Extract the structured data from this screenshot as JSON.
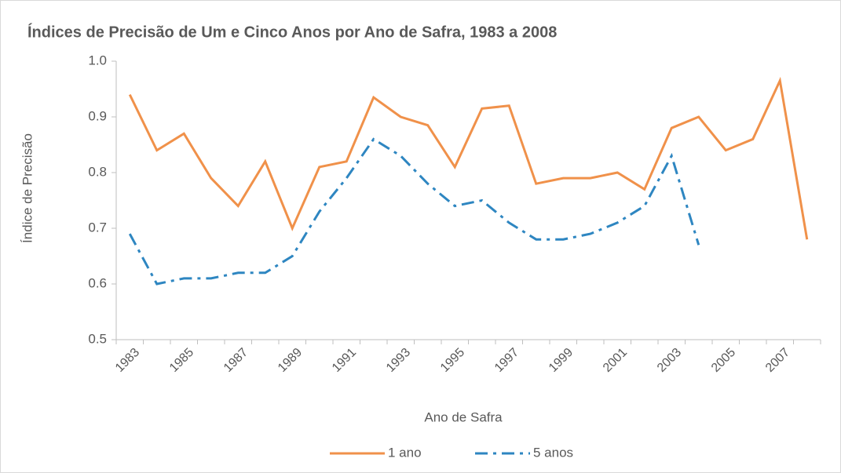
{
  "chart_data": {
    "type": "line",
    "title": "Índices de Precisão de Um e Cinco Anos por Ano de Safra, 1983 a 2008",
    "x_label": "Ano de Safra",
    "y_label": "Índice de Precisão",
    "categories": [
      "1983",
      null,
      "1985",
      null,
      "1987",
      null,
      "1989",
      null,
      "1991",
      null,
      "1993",
      null,
      "1995",
      null,
      "1997",
      null,
      "1999",
      null,
      "2001",
      null,
      "2003",
      null,
      "2005",
      null,
      "2007",
      null
    ],
    "series": [
      {
        "name": "1 ano",
        "color": "#f0914a",
        "dash": "solid",
        "values": [
          0.94,
          0.84,
          0.87,
          0.79,
          0.74,
          0.82,
          0.7,
          0.81,
          0.82,
          0.935,
          0.9,
          0.885,
          0.81,
          0.915,
          0.92,
          0.78,
          0.79,
          0.79,
          0.8,
          0.77,
          0.88,
          0.9,
          0.84,
          0.86,
          0.965,
          0.68
        ]
      },
      {
        "name": "5 anos",
        "color": "#2e86c1",
        "dash": "dash-dot",
        "values": [
          0.69,
          0.6,
          0.61,
          0.61,
          0.62,
          0.62,
          0.65,
          0.73,
          0.79,
          0.86,
          0.83,
          0.78,
          0.74,
          0.75,
          0.71,
          0.68,
          0.68,
          0.69,
          0.71,
          0.74,
          0.83,
          0.67,
          null,
          null,
          null,
          null
        ]
      }
    ],
    "ylim": [
      0.5,
      1
    ],
    "yticks": [
      0.5,
      0.6,
      0.7,
      0.8,
      0.9,
      {
        "value": 1,
        "label": "1.0"
      }
    ],
    "grid": false,
    "legend": "bottom"
  }
}
